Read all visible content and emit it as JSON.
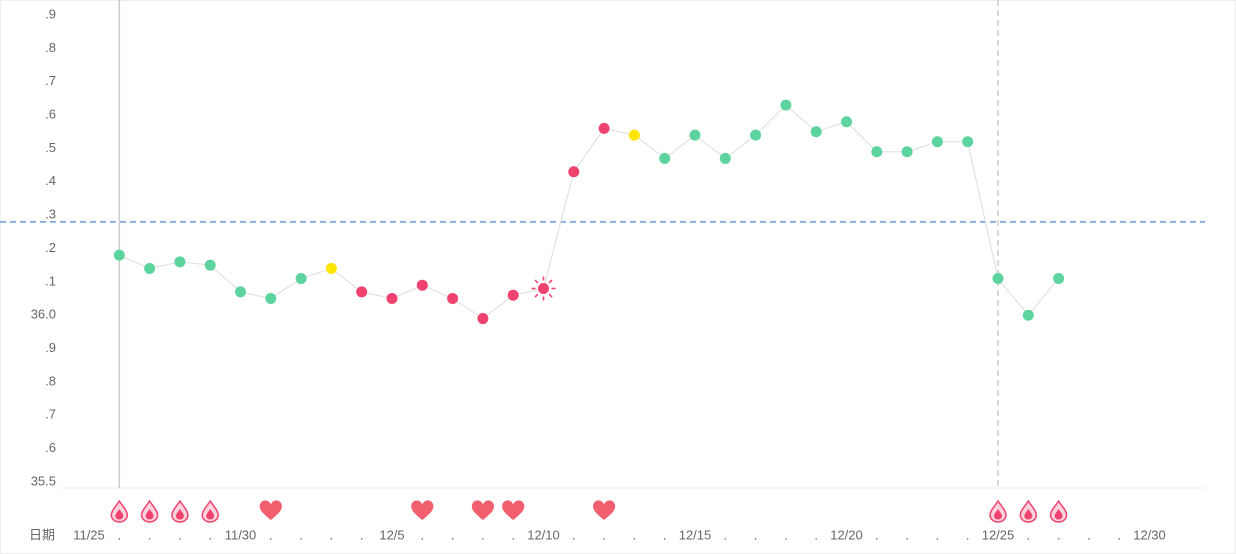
{
  "chart_data": {
    "type": "line",
    "x_label": "日期",
    "categories": [
      "11/25",
      ".",
      ".",
      ".",
      ".",
      "11/30",
      ".",
      ".",
      ".",
      ".",
      "12/5",
      ".",
      ".",
      ".",
      ".",
      "12/10",
      ".",
      ".",
      ".",
      ".",
      "12/15",
      ".",
      ".",
      ".",
      ".",
      "12/20",
      ".",
      ".",
      ".",
      ".",
      "12/25",
      ".",
      ".",
      ".",
      ".",
      "12/30"
    ],
    "series": [
      {
        "color": "#dddddd",
        "values": [
          null,
          36.18,
          36.14,
          36.16,
          36.15,
          36.07,
          36.05,
          36.11,
          36.14,
          36.07,
          36.05,
          36.09,
          36.05,
          35.99,
          36.06,
          36.08,
          36.43,
          36.56,
          36.54,
          36.47,
          36.54,
          36.47,
          36.54,
          36.63,
          36.55,
          36.58,
          36.49,
          36.49,
          36.52,
          36.52,
          36.11,
          36.0,
          36.11,
          null,
          null,
          null
        ],
        "point_colors": [
          null,
          "#5dd39e",
          "#5dd39e",
          "#5dd39e",
          "#5dd39e",
          "#5dd39e",
          "#5dd39e",
          "#5dd39e",
          "#ffe600",
          "#f0426f",
          "#f0426f",
          "#f0426f",
          "#f0426f",
          "#f0426f",
          "#f0426f",
          "#f0426f",
          "#f0426f",
          "#f0426f",
          "#ffe600",
          "#5dd39e",
          "#5dd39e",
          "#5dd39e",
          "#5dd39e",
          "#5dd39e",
          "#5dd39e",
          "#5dd39e",
          "#5dd39e",
          "#5dd39e",
          "#5dd39e",
          "#5dd39e",
          "#5dd39e",
          "#5dd39e",
          "#5dd39e",
          null,
          null,
          null
        ]
      }
    ],
    "ovulation_index": 15,
    "cover_line": 36.28,
    "cover_line_color": "#6f9be0",
    "period_lines": [
      1,
      30
    ],
    "period_days": [
      1,
      2,
      3,
      4,
      30,
      31,
      32
    ],
    "intercourse_days": [
      6,
      11,
      13,
      14,
      17
    ],
    "ylim": [
      35.5,
      36.9
    ],
    "yticks": [
      {
        "value": 36.9,
        "label": ".9"
      },
      {
        "value": 36.8,
        "label": ".8"
      },
      {
        "value": 36.7,
        "label": ".7"
      },
      {
        "value": 36.6,
        "label": ".6"
      },
      {
        "value": 36.5,
        "label": ".5"
      },
      {
        "value": 36.4,
        "label": ".4"
      },
      {
        "value": 36.3,
        "label": ".3"
      },
      {
        "value": 36.2,
        "label": ".2"
      },
      {
        "value": 36.1,
        "label": ".1"
      },
      {
        "value": 36.0,
        "label": "36.0"
      },
      {
        "value": 35.9,
        "label": ".9"
      },
      {
        "value": 35.8,
        "label": ".8"
      },
      {
        "value": 35.7,
        "label": ".7"
      },
      {
        "value": 35.6,
        "label": ".6"
      },
      35.5
    ]
  }
}
